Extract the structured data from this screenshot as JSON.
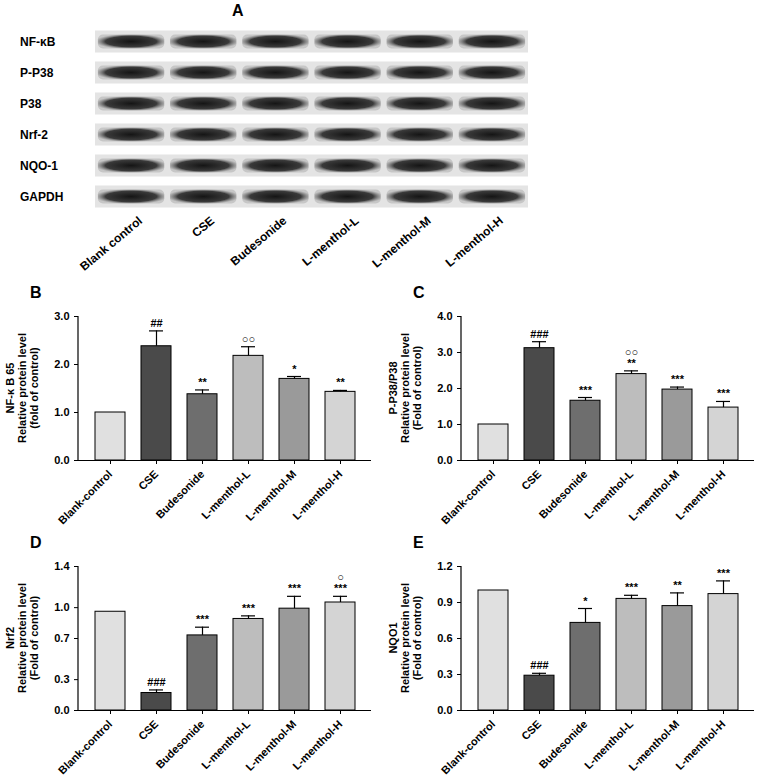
{
  "blot": {
    "title": "A",
    "rows": [
      "NF-κB",
      "P-P38",
      "P38",
      "Nrf-2",
      "NQO-1",
      "GAPDH"
    ],
    "lanes": [
      "Blank control",
      "CSE",
      "Budesonide",
      "L-menthol-L",
      "L-menthol-M",
      "L-menthol-H"
    ]
  },
  "chart_data": [
    {
      "type": "bar",
      "title": "B",
      "y_label": [
        "NF-κ B 65",
        "Relative protein level",
        "(fold of control)"
      ],
      "categories": [
        "Blank-control",
        "CSE",
        "Budesonide",
        "L-menthol-L",
        "L-menthol-M",
        "L-menthol-H"
      ],
      "values": [
        1.0,
        2.38,
        1.38,
        2.18,
        1.7,
        1.43
      ],
      "errors": [
        0,
        0.32,
        0.09,
        0.19,
        0.05,
        0.03
      ],
      "annotations": [
        null,
        [
          "##"
        ],
        [
          "**"
        ],
        [
          "○○"
        ],
        [
          "*"
        ],
        [
          "**"
        ]
      ],
      "colors": [
        "#e0e0e0",
        "#4a4a4a",
        "#6e6e6e",
        "#bdbdbd",
        "#9a9a9a",
        "#d4d4d4"
      ],
      "ylim": [
        0,
        3
      ],
      "yticks": [
        {
          "value": 0,
          "label": "0.0"
        },
        {
          "value": 1,
          "label": "1.0"
        },
        {
          "value": 2,
          "label": "2.0"
        },
        {
          "value": 3,
          "label": "3.0"
        }
      ]
    },
    {
      "type": "bar",
      "title": "C",
      "y_label": [
        "P-P38/P38",
        "Relative protein level",
        "(Fold of control)"
      ],
      "categories": [
        "Blank-control",
        "CSE",
        "Budesonide",
        "L-menthol-L",
        "L-menthol-M",
        "L-menthol-H"
      ],
      "values": [
        1.0,
        3.12,
        1.66,
        2.4,
        1.97,
        1.47
      ],
      "errors": [
        0,
        0.18,
        0.09,
        0.09,
        0.07,
        0.17
      ],
      "annotations": [
        null,
        [
          "###"
        ],
        [
          "***"
        ],
        [
          "○○",
          "**"
        ],
        [
          "***"
        ],
        [
          "***"
        ]
      ],
      "colors": [
        "#e0e0e0",
        "#4a4a4a",
        "#6e6e6e",
        "#bdbdbd",
        "#9a9a9a",
        "#d4d4d4"
      ],
      "ylim": [
        0,
        4
      ],
      "yticks": [
        {
          "value": 0,
          "label": "0.0"
        },
        {
          "value": 1,
          "label": "1.0"
        },
        {
          "value": 2,
          "label": "2.0"
        },
        {
          "value": 3,
          "label": "3.0"
        },
        {
          "value": 4,
          "label": "4.0"
        }
      ]
    },
    {
      "type": "bar",
      "title": "D",
      "y_label": [
        "Nrf2",
        "Relative protein level",
        "(Fold of control)"
      ],
      "categories": [
        "Blank-control",
        "CSE",
        "Budesonide",
        "L-menthol-L",
        "L-menthol-M",
        "L-menthol-H"
      ],
      "values": [
        0.96,
        0.17,
        0.73,
        0.89,
        0.99,
        1.05
      ],
      "errors": [
        0,
        0.03,
        0.08,
        0.03,
        0.12,
        0.06
      ],
      "annotations": [
        null,
        [
          "###"
        ],
        [
          "***"
        ],
        [
          "***"
        ],
        [
          "***"
        ],
        [
          "○",
          "***"
        ]
      ],
      "colors": [
        "#e0e0e0",
        "#4a4a4a",
        "#6e6e6e",
        "#bdbdbd",
        "#9a9a9a",
        "#d4d4d4"
      ],
      "ylim": [
        0,
        1.4
      ],
      "yticks": [
        {
          "value": 0,
          "label": "0.0"
        },
        0.3,
        0.7,
        {
          "value": 1,
          "label": "1.0"
        },
        1.4
      ]
    },
    {
      "type": "bar",
      "title": "E",
      "y_label": [
        "NQO1",
        "Relative protein level",
        "(Fold of control)"
      ],
      "categories": [
        "Blank-control",
        "CSE",
        "Budesonide",
        "L-menthol-L",
        "L-menthol-M",
        "L-menthol-H"
      ],
      "values": [
        1.0,
        0.29,
        0.73,
        0.93,
        0.87,
        0.97
      ],
      "errors": [
        0,
        0.02,
        0.12,
        0.03,
        0.11,
        0.11
      ],
      "annotations": [
        null,
        [
          "###"
        ],
        [
          "*"
        ],
        [
          "***"
        ],
        [
          "**"
        ],
        [
          "***"
        ]
      ],
      "colors": [
        "#e0e0e0",
        "#4a4a4a",
        "#6e6e6e",
        "#bdbdbd",
        "#9a9a9a",
        "#d4d4d4"
      ],
      "ylim": [
        0,
        1.2
      ],
      "yticks": [
        {
          "value": 0,
          "label": "0.0"
        },
        0.3,
        0.6,
        0.9,
        1.2
      ]
    }
  ]
}
